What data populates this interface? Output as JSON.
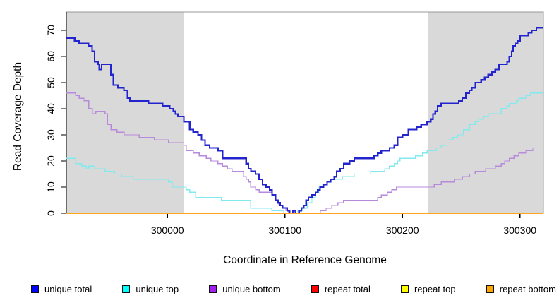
{
  "chart_data": {
    "type": "line",
    "subtype": "step",
    "title": "",
    "xlabel": "Coordinate in Reference Genome",
    "ylabel": "Read Coverage Depth",
    "xlim": [
      299914,
      300320
    ],
    "ylim": [
      0,
      77
    ],
    "x_ticks": [
      300000,
      300100,
      300200,
      300300
    ],
    "y_ticks": [
      0,
      10,
      20,
      30,
      40,
      50,
      60,
      70
    ],
    "grid": false,
    "legend_position": "bottom",
    "background_color": "#FFFFFF",
    "shade_color": "#D9D9D9",
    "box_color": "#999999",
    "axis_color": "#000000",
    "shaded_regions": [
      {
        "x0": 299914,
        "x1": 300014
      },
      {
        "x0": 300222,
        "x1": 300320
      }
    ],
    "series": [
      {
        "name": "unique-total",
        "legend_label": "unique total",
        "line_color": "#2424CF",
        "swatch_color": "#0000FF",
        "line_width": 2.2,
        "z": 4,
        "points": [
          [
            299914,
            67
          ],
          [
            299921,
            66
          ],
          [
            299925,
            65
          ],
          [
            299933,
            64
          ],
          [
            299936,
            62
          ],
          [
            299938,
            58
          ],
          [
            299941,
            57
          ],
          [
            299942,
            55
          ],
          [
            299944,
            57
          ],
          [
            299952,
            53
          ],
          [
            299954,
            49
          ],
          [
            299958,
            48
          ],
          [
            299963,
            47
          ],
          [
            299966,
            44
          ],
          [
            299968,
            43
          ],
          [
            299984,
            42
          ],
          [
            299996,
            41
          ],
          [
            300002,
            40
          ],
          [
            300005,
            39
          ],
          [
            300007,
            38
          ],
          [
            300009,
            37
          ],
          [
            300014,
            35
          ],
          [
            300019,
            32
          ],
          [
            300022,
            31
          ],
          [
            300026,
            30
          ],
          [
            300029,
            28
          ],
          [
            300032,
            26
          ],
          [
            300036,
            25
          ],
          [
            300043,
            24
          ],
          [
            300047,
            21
          ],
          [
            300067,
            19
          ],
          [
            300069,
            17
          ],
          [
            300071,
            16
          ],
          [
            300075,
            15
          ],
          [
            300078,
            13
          ],
          [
            300081,
            11
          ],
          [
            300084,
            10
          ],
          [
            300087,
            9
          ],
          [
            300089,
            7
          ],
          [
            300092,
            5
          ],
          [
            300094,
            4
          ],
          [
            300096,
            3
          ],
          [
            300098,
            2
          ],
          [
            300102,
            1
          ],
          [
            300104,
            0
          ],
          [
            300107,
            1
          ],
          [
            300109,
            0
          ],
          [
            300112,
            1
          ],
          [
            300114,
            2
          ],
          [
            300116,
            3
          ],
          [
            300118,
            5
          ],
          [
            300120,
            6
          ],
          [
            300123,
            7
          ],
          [
            300126,
            8
          ],
          [
            300128,
            9
          ],
          [
            300130,
            10
          ],
          [
            300133,
            11
          ],
          [
            300136,
            12
          ],
          [
            300139,
            13
          ],
          [
            300142,
            14
          ],
          [
            300144,
            16
          ],
          [
            300147,
            17
          ],
          [
            300150,
            19
          ],
          [
            300155,
            20
          ],
          [
            300159,
            21
          ],
          [
            300176,
            22
          ],
          [
            300179,
            23
          ],
          [
            300182,
            24
          ],
          [
            300189,
            25
          ],
          [
            300193,
            26
          ],
          [
            300196,
            29
          ],
          [
            300200,
            30
          ],
          [
            300205,
            32
          ],
          [
            300212,
            33
          ],
          [
            300216,
            34
          ],
          [
            300221,
            35
          ],
          [
            300224,
            36
          ],
          [
            300226,
            38
          ],
          [
            300228,
            39
          ],
          [
            300230,
            41
          ],
          [
            300233,
            42
          ],
          [
            300248,
            43
          ],
          [
            300251,
            44
          ],
          [
            300254,
            46
          ],
          [
            300257,
            47
          ],
          [
            300259,
            48
          ],
          [
            300262,
            50
          ],
          [
            300267,
            51
          ],
          [
            300270,
            52
          ],
          [
            300273,
            53
          ],
          [
            300276,
            54
          ],
          [
            300279,
            55
          ],
          [
            300282,
            57
          ],
          [
            300289,
            58
          ],
          [
            300291,
            60
          ],
          [
            300293,
            62
          ],
          [
            300294,
            64
          ],
          [
            300296,
            65
          ],
          [
            300298,
            66
          ],
          [
            300300,
            68
          ],
          [
            300307,
            69
          ],
          [
            300310,
            70
          ],
          [
            300314,
            71
          ],
          [
            300320,
            71
          ]
        ]
      },
      {
        "name": "unique-top",
        "legend_label": "unique top",
        "line_color": "#80EAEE",
        "swatch_color": "#00FFFF",
        "line_width": 1.4,
        "z": 3,
        "points": [
          [
            299914,
            21
          ],
          [
            299922,
            19
          ],
          [
            299927,
            18
          ],
          [
            299931,
            17
          ],
          [
            299933,
            18
          ],
          [
            299938,
            17
          ],
          [
            299947,
            16
          ],
          [
            299955,
            15
          ],
          [
            299961,
            14
          ],
          [
            299971,
            13
          ],
          [
            300001,
            12
          ],
          [
            300004,
            10
          ],
          [
            300016,
            9
          ],
          [
            300019,
            8
          ],
          [
            300024,
            6
          ],
          [
            300046,
            5
          ],
          [
            300071,
            2
          ],
          [
            300089,
            1
          ],
          [
            300099,
            0
          ],
          [
            300111,
            1
          ],
          [
            300115,
            2
          ],
          [
            300119,
            4
          ],
          [
            300123,
            6
          ],
          [
            300126,
            8
          ],
          [
            300129,
            10
          ],
          [
            300132,
            11
          ],
          [
            300136,
            12
          ],
          [
            300140,
            13
          ],
          [
            300149,
            14
          ],
          [
            300159,
            15
          ],
          [
            300173,
            16
          ],
          [
            300185,
            17
          ],
          [
            300189,
            18
          ],
          [
            300193,
            19
          ],
          [
            300196,
            20
          ],
          [
            300198,
            21
          ],
          [
            300211,
            22
          ],
          [
            300217,
            23
          ],
          [
            300221,
            24
          ],
          [
            300229,
            25
          ],
          [
            300233,
            26
          ],
          [
            300238,
            28
          ],
          [
            300243,
            29
          ],
          [
            300247,
            30
          ],
          [
            300252,
            32
          ],
          [
            300257,
            34
          ],
          [
            300262,
            35
          ],
          [
            300265,
            36
          ],
          [
            300269,
            37
          ],
          [
            300273,
            38
          ],
          [
            300284,
            40
          ],
          [
            300289,
            41
          ],
          [
            300291,
            42
          ],
          [
            300297,
            43
          ],
          [
            300299,
            44
          ],
          [
            300305,
            45
          ],
          [
            300309,
            46
          ],
          [
            300320,
            46
          ]
        ]
      },
      {
        "name": "unique-bottom",
        "legend_label": "unique bottom",
        "line_color": "#B78ADB",
        "swatch_color": "#A020F0",
        "line_width": 1.4,
        "z": 2,
        "points": [
          [
            299914,
            46
          ],
          [
            299922,
            45
          ],
          [
            299925,
            44
          ],
          [
            299929,
            43
          ],
          [
            299933,
            40
          ],
          [
            299936,
            38
          ],
          [
            299939,
            39
          ],
          [
            299947,
            38
          ],
          [
            299949,
            34
          ],
          [
            299952,
            32
          ],
          [
            299957,
            31
          ],
          [
            299963,
            30
          ],
          [
            299976,
            29
          ],
          [
            299989,
            28
          ],
          [
            300001,
            27
          ],
          [
            300014,
            26
          ],
          [
            300016,
            24
          ],
          [
            300022,
            23
          ],
          [
            300027,
            22
          ],
          [
            300033,
            21
          ],
          [
            300037,
            20
          ],
          [
            300043,
            19
          ],
          [
            300047,
            18
          ],
          [
            300051,
            17
          ],
          [
            300055,
            16
          ],
          [
            300065,
            14
          ],
          [
            300067,
            13
          ],
          [
            300069,
            12
          ],
          [
            300071,
            10
          ],
          [
            300075,
            9
          ],
          [
            300078,
            8
          ],
          [
            300089,
            7
          ],
          [
            300092,
            5
          ],
          [
            300095,
            3
          ],
          [
            300098,
            2
          ],
          [
            300101,
            1
          ],
          [
            300103,
            0
          ],
          [
            300130,
            1
          ],
          [
            300135,
            2
          ],
          [
            300140,
            3
          ],
          [
            300145,
            4
          ],
          [
            300150,
            5
          ],
          [
            300179,
            6
          ],
          [
            300182,
            7
          ],
          [
            300187,
            8
          ],
          [
            300191,
            9
          ],
          [
            300195,
            10
          ],
          [
            300227,
            11
          ],
          [
            300233,
            12
          ],
          [
            300244,
            13
          ],
          [
            300251,
            14
          ],
          [
            300257,
            15
          ],
          [
            300262,
            16
          ],
          [
            300271,
            17
          ],
          [
            300279,
            18
          ],
          [
            300284,
            19
          ],
          [
            300287,
            20
          ],
          [
            300291,
            21
          ],
          [
            300295,
            22
          ],
          [
            300299,
            23
          ],
          [
            300305,
            24
          ],
          [
            300311,
            25
          ],
          [
            300320,
            25
          ]
        ]
      },
      {
        "name": "repeat-total",
        "legend_label": "repeat total",
        "line_color": "#D02020",
        "swatch_color": "#FF0000",
        "line_width": 1,
        "z": 0,
        "points": [
          [
            299914,
            0
          ],
          [
            300320,
            0
          ]
        ]
      },
      {
        "name": "repeat-top",
        "legend_label": "repeat top",
        "line_color": "#FFF04D",
        "swatch_color": "#FFFF00",
        "line_width": 1,
        "z": 1,
        "points": [
          [
            299914,
            0
          ],
          [
            300320,
            0
          ]
        ]
      },
      {
        "name": "repeat-bottom",
        "legend_label": "repeat bottom",
        "line_color": "#FFA41B",
        "swatch_color": "#FFA500",
        "line_width": 1.8,
        "z": 5,
        "points": [
          [
            299914,
            0
          ],
          [
            300320,
            0
          ]
        ]
      }
    ]
  }
}
